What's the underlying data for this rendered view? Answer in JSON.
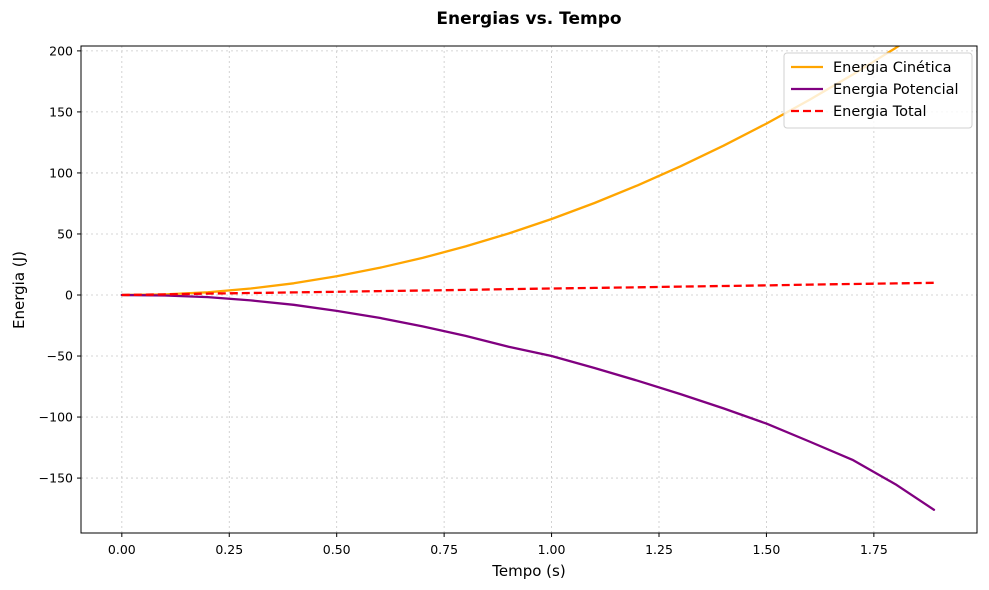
{
  "chart_data": {
    "type": "line",
    "title": "Energias vs. Tempo",
    "xlabel": "Tempo (s)",
    "ylabel": "Energia (J)",
    "xlim": [
      -0.095,
      1.99
    ],
    "ylim": [
      -195,
      204
    ],
    "grid": true,
    "legend_position": "top-right",
    "x_ticks": [
      0.0,
      0.25,
      0.5,
      0.75,
      1.0,
      1.25,
      1.5,
      1.75
    ],
    "x_tick_labels": [
      "0.00",
      "0.25",
      "0.50",
      "0.75",
      "1.00",
      "1.25",
      "1.50",
      "1.75"
    ],
    "y_ticks": [
      -150,
      -100,
      -50,
      0,
      50,
      100,
      150,
      200
    ],
    "y_tick_labels": [
      "−150",
      "−100",
      "−50",
      "0",
      "50",
      "100",
      "150",
      "200"
    ],
    "x": [
      0.0,
      0.1,
      0.2,
      0.3,
      0.4,
      0.5,
      0.6,
      0.7,
      0.8,
      0.9,
      1.0,
      1.1,
      1.2,
      1.3,
      1.4,
      1.5,
      1.6,
      1.7,
      1.8,
      1.89
    ],
    "series": [
      {
        "name": "Energia Cinética",
        "color": "#ffa500",
        "style": "solid",
        "values": [
          0.0,
          0.5,
          2.2,
          5.3,
          9.6,
          15.4,
          22.3,
          30.4,
          39.8,
          50.4,
          62.3,
          75.4,
          89.8,
          105.4,
          122.3,
          140.4,
          159.8,
          180.4,
          202.3,
          223.0
        ]
      },
      {
        "name": "Energia Potencial",
        "color": "#800080",
        "style": "solid",
        "values": [
          0.0,
          -0.4,
          -1.7,
          -4.4,
          -8.0,
          -13.0,
          -18.8,
          -25.7,
          -33.5,
          -42.4,
          -50.0,
          -59.8,
          -70.2,
          -81.2,
          -92.9,
          -105.4,
          -120.0,
          -135.0,
          -155.0,
          -176.0
        ]
      },
      {
        "name": "Energia Total",
        "color": "#ff0000",
        "style": "dashed",
        "values": [
          0.0,
          0.5,
          1.1,
          1.6,
          2.1,
          2.6,
          3.2,
          3.7,
          4.2,
          4.8,
          5.3,
          5.8,
          6.3,
          6.9,
          7.4,
          7.9,
          8.5,
          9.0,
          9.5,
          10.0
        ]
      }
    ]
  }
}
